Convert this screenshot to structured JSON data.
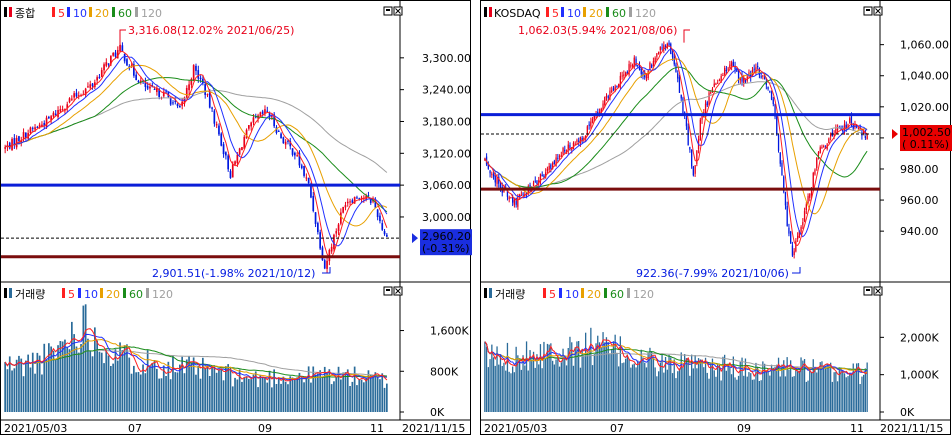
{
  "colors": {
    "up": "#e8001a",
    "down": "#0018e0",
    "ma5": "#ff2020",
    "ma10": "#2030ff",
    "ma20": "#e8a000",
    "ma60": "#1a8c1a",
    "ma120": "#a0a0a0",
    "support_line": "#0a1ed8",
    "resistance_line": "#7a0d0d",
    "current_box": "#1a2ee0",
    "current_box_kosdaq": "#e80000",
    "volume_bar": "#2a6b9a"
  },
  "dates": {
    "left": {
      "start": "2021/05/03",
      "m07": "07",
      "m09": "09",
      "m11": "11",
      "end": "2021/11/15"
    },
    "right": {
      "start": "2021/05/03",
      "m07": "07",
      "m09": "09",
      "m11": "11",
      "end": "2021/11/15"
    }
  },
  "chart_data": [
    {
      "type": "candlestick",
      "title": "종합",
      "legend": [
        "5",
        "10",
        "20",
        "60",
        "120"
      ],
      "ylim": [
        2900,
        3360
      ],
      "yticks": [
        "3,300.00",
        "3,240.00",
        "3,180.00",
        "3,120.00",
        "3,060.00",
        "3,000.00"
      ],
      "yvalues": [
        3300,
        3240,
        3180,
        3120,
        3060,
        3000
      ],
      "max_label": "3,316.08(12.02% 2021/06/25)",
      "min_label": "2,901.51(-1.98% 2021/10/12)",
      "current": "2,960.20",
      "current_change": "(-0.31%)",
      "hlines": [
        3060,
        2925
      ],
      "dashed": 2960,
      "anchors": [
        [
          0,
          3130
        ],
        [
          10,
          3160
        ],
        [
          18,
          3180
        ],
        [
          28,
          3220
        ],
        [
          38,
          3250
        ],
        [
          46,
          3300
        ],
        [
          50,
          3316
        ],
        [
          56,
          3270
        ],
        [
          62,
          3240
        ],
        [
          70,
          3230
        ],
        [
          76,
          3200
        ],
        [
          82,
          3280
        ],
        [
          86,
          3250
        ],
        [
          92,
          3170
        ],
        [
          98,
          3080
        ],
        [
          104,
          3150
        ],
        [
          108,
          3180
        ],
        [
          114,
          3200
        ],
        [
          120,
          3150
        ],
        [
          126,
          3120
        ],
        [
          132,
          3060
        ],
        [
          136,
          2970
        ],
        [
          139,
          2905
        ],
        [
          142,
          2950
        ],
        [
          148,
          3030
        ],
        [
          154,
          3040
        ],
        [
          160,
          3030
        ],
        [
          164,
          2980
        ],
        [
          166,
          2960
        ]
      ]
    },
    {
      "type": "bar",
      "title": "거래량",
      "legend": [
        "5",
        "10",
        "20",
        "60",
        "120"
      ],
      "ylim": [
        0,
        2200
      ],
      "yticks": [
        "1,600K",
        "800K",
        "0K"
      ],
      "yvalues": [
        1600,
        800,
        0
      ],
      "anchors": [
        [
          0,
          900
        ],
        [
          10,
          950
        ],
        [
          20,
          1100
        ],
        [
          28,
          1500
        ],
        [
          35,
          1750
        ],
        [
          40,
          1400
        ],
        [
          50,
          1100
        ],
        [
          60,
          1000
        ],
        [
          70,
          900
        ],
        [
          80,
          850
        ],
        [
          90,
          800
        ],
        [
          100,
          700
        ],
        [
          110,
          650
        ],
        [
          120,
          700
        ],
        [
          130,
          700
        ],
        [
          140,
          750
        ],
        [
          150,
          700
        ],
        [
          160,
          650
        ],
        [
          166,
          600
        ]
      ]
    },
    {
      "type": "candlestick",
      "title": "KOSDAQ",
      "legend": [
        "5",
        "10",
        "20",
        "60",
        "120"
      ],
      "ylim": [
        915,
        1072
      ],
      "yticks": [
        "1,060.00",
        "1,040.00",
        "1,020.00",
        "1,000.00",
        "980.00",
        "960.00",
        "940.00"
      ],
      "yvalues": [
        1060,
        1040,
        1020,
        1000,
        980,
        960,
        940
      ],
      "max_label": "1,062.03(5.94% 2021/08/06)",
      "min_label": "922.36(-7.99% 2021/10/06)",
      "current": "1,002.50",
      "current_change": "( 0.11%)",
      "hlines": [
        1015,
        967
      ],
      "dashed": 1002.5,
      "anchors": [
        [
          0,
          985
        ],
        [
          8,
          970
        ],
        [
          16,
          958
        ],
        [
          24,
          965
        ],
        [
          32,
          975
        ],
        [
          40,
          985
        ],
        [
          48,
          995
        ],
        [
          56,
          1000
        ],
        [
          64,
          1015
        ],
        [
          72,
          1030
        ],
        [
          80,
          1040
        ],
        [
          86,
          1050
        ],
        [
          92,
          1040
        ],
        [
          100,
          1055
        ],
        [
          106,
          1060
        ],
        [
          110,
          1045
        ],
        [
          116,
          1005
        ],
        [
          120,
          975
        ],
        [
          124,
          1010
        ],
        [
          130,
          1030
        ],
        [
          136,
          1040
        ],
        [
          142,
          1048
        ],
        [
          148,
          1035
        ],
        [
          156,
          1045
        ],
        [
          162,
          1035
        ],
        [
          166,
          1020
        ],
        [
          170,
          985
        ],
        [
          174,
          945
        ],
        [
          177,
          925
        ],
        [
          180,
          935
        ],
        [
          186,
          960
        ],
        [
          192,
          990
        ],
        [
          198,
          1000
        ],
        [
          204,
          1005
        ],
        [
          210,
          1010
        ],
        [
          216,
          1005
        ],
        [
          220,
          1002
        ]
      ]
    },
    {
      "type": "bar",
      "title": "거래량",
      "legend": [
        "5",
        "10",
        "20",
        "60",
        "120"
      ],
      "ylim": [
        0,
        3000
      ],
      "yticks": [
        "2,000K",
        "1,000K",
        "0K"
      ],
      "yvalues": [
        2000,
        1000,
        0
      ],
      "anchors": [
        [
          0,
          1500
        ],
        [
          10,
          1400
        ],
        [
          20,
          1550
        ],
        [
          30,
          1600
        ],
        [
          40,
          1700
        ],
        [
          50,
          1550
        ],
        [
          60,
          1800
        ],
        [
          70,
          1700
        ],
        [
          80,
          1550
        ],
        [
          90,
          1400
        ],
        [
          100,
          1300
        ],
        [
          110,
          1250
        ],
        [
          120,
          1200
        ],
        [
          130,
          1150
        ],
        [
          140,
          1200
        ],
        [
          150,
          1150
        ],
        [
          160,
          1100
        ],
        [
          170,
          1200
        ],
        [
          180,
          1150
        ],
        [
          190,
          1100
        ],
        [
          200,
          1050
        ],
        [
          210,
          1100
        ],
        [
          220,
          1050
        ]
      ]
    }
  ]
}
